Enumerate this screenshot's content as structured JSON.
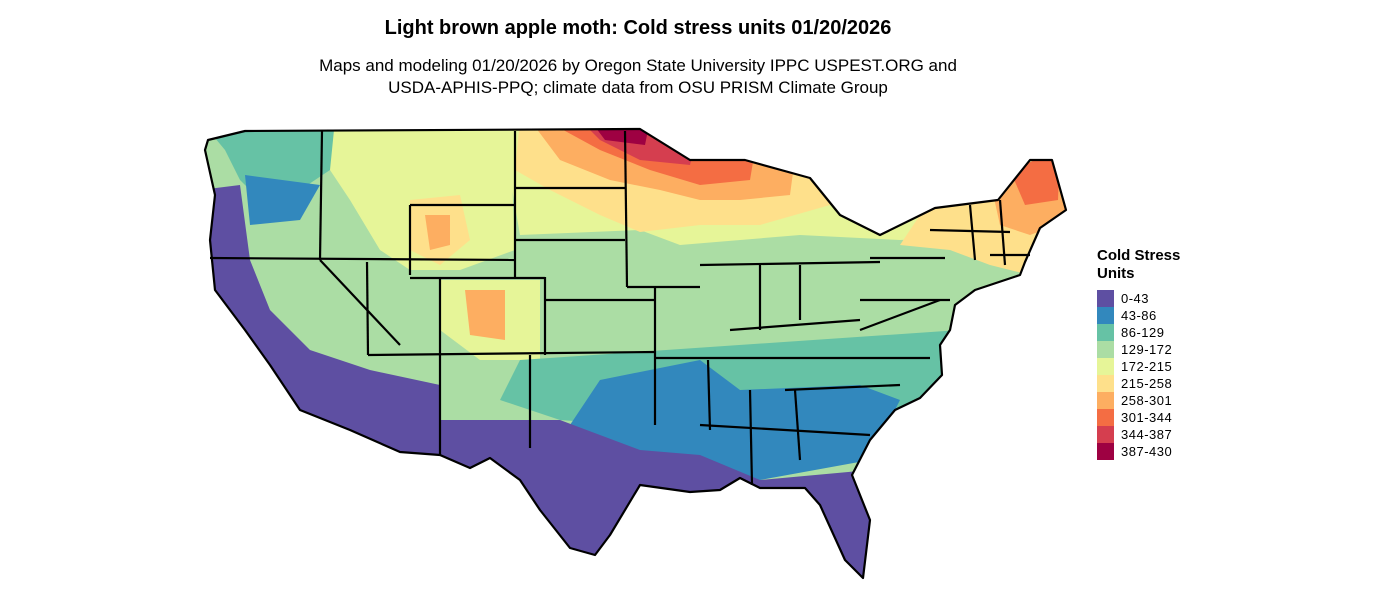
{
  "title": "Light brown apple moth: Cold stress units 01/20/2026",
  "subtitle_line1": "Maps and modeling 01/20/2026 by Oregon State University IPPC USPEST.ORG and",
  "subtitle_line2": "USDA-APHIS-PPQ; climate data from OSU PRISM Climate Group",
  "legend": {
    "title_line1": "Cold Stress",
    "title_line2": "Units",
    "items": [
      {
        "label": "0-43",
        "color": "#5e4fa2"
      },
      {
        "label": "43-86",
        "color": "#3288bd"
      },
      {
        "label": "86-129",
        "color": "#66c2a5"
      },
      {
        "label": "129-172",
        "color": "#abdda4"
      },
      {
        "label": "172-215",
        "color": "#e6f598"
      },
      {
        "label": "215-258",
        "color": "#fee08b"
      },
      {
        "label": "258-301",
        "color": "#fdae61"
      },
      {
        "label": "301-344",
        "color": "#f46d43"
      },
      {
        "label": "344-387",
        "color": "#d53e4f"
      },
      {
        "label": "387-430",
        "color": "#9e0142"
      }
    ]
  },
  "map": {
    "region": "Contiguous United States",
    "border_color": "#000000"
  }
}
